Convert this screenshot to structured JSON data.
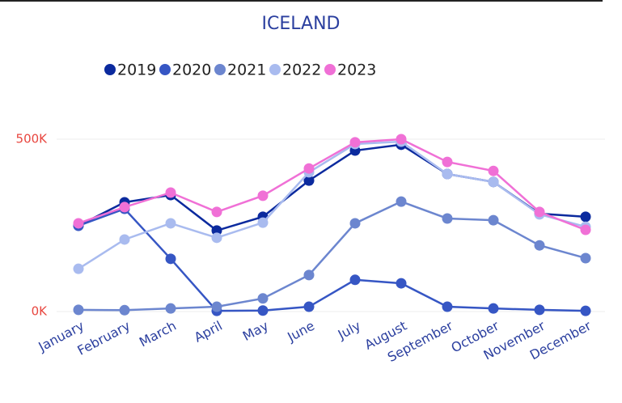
{
  "chart_data": {
    "type": "line",
    "title": "ICELAND",
    "categories": [
      "January",
      "February",
      "March",
      "April",
      "May",
      "June",
      "July",
      "August",
      "September",
      "October",
      "November",
      "December"
    ],
    "series": [
      {
        "name": "2019",
        "color": "#0b2a9e",
        "values": [
          249000,
          317000,
          338000,
          235000,
          275000,
          380000,
          467000,
          484000,
          399000,
          376000,
          284000,
          275000
        ]
      },
      {
        "name": "2020",
        "color": "#3656c4",
        "values": [
          249000,
          298000,
          153000,
          2000,
          3000,
          14000,
          92000,
          82000,
          14000,
          9000,
          5000,
          2000
        ]
      },
      {
        "name": "2021",
        "color": "#6c86cf",
        "values": [
          5000,
          4000,
          9000,
          14000,
          38000,
          106000,
          256000,
          319000,
          270000,
          265000,
          192000,
          155000
        ]
      },
      {
        "name": "2022",
        "color": "#a9bbef",
        "values": [
          124000,
          209000,
          256000,
          214000,
          258000,
          404000,
          486000,
          493000,
          399000,
          376000,
          282000,
          246000
        ]
      },
      {
        "name": "2023",
        "color": "#f070d6",
        "values": [
          256000,
          303000,
          345000,
          289000,
          336000,
          415000,
          491000,
          500000,
          434000,
          408000,
          289000,
          237000
        ]
      }
    ],
    "ylim": [
      0,
      500000
    ],
    "yticks": [
      {
        "value": 0,
        "label": "0K"
      },
      {
        "value": 500000,
        "label": "500K"
      }
    ],
    "grid": true
  }
}
